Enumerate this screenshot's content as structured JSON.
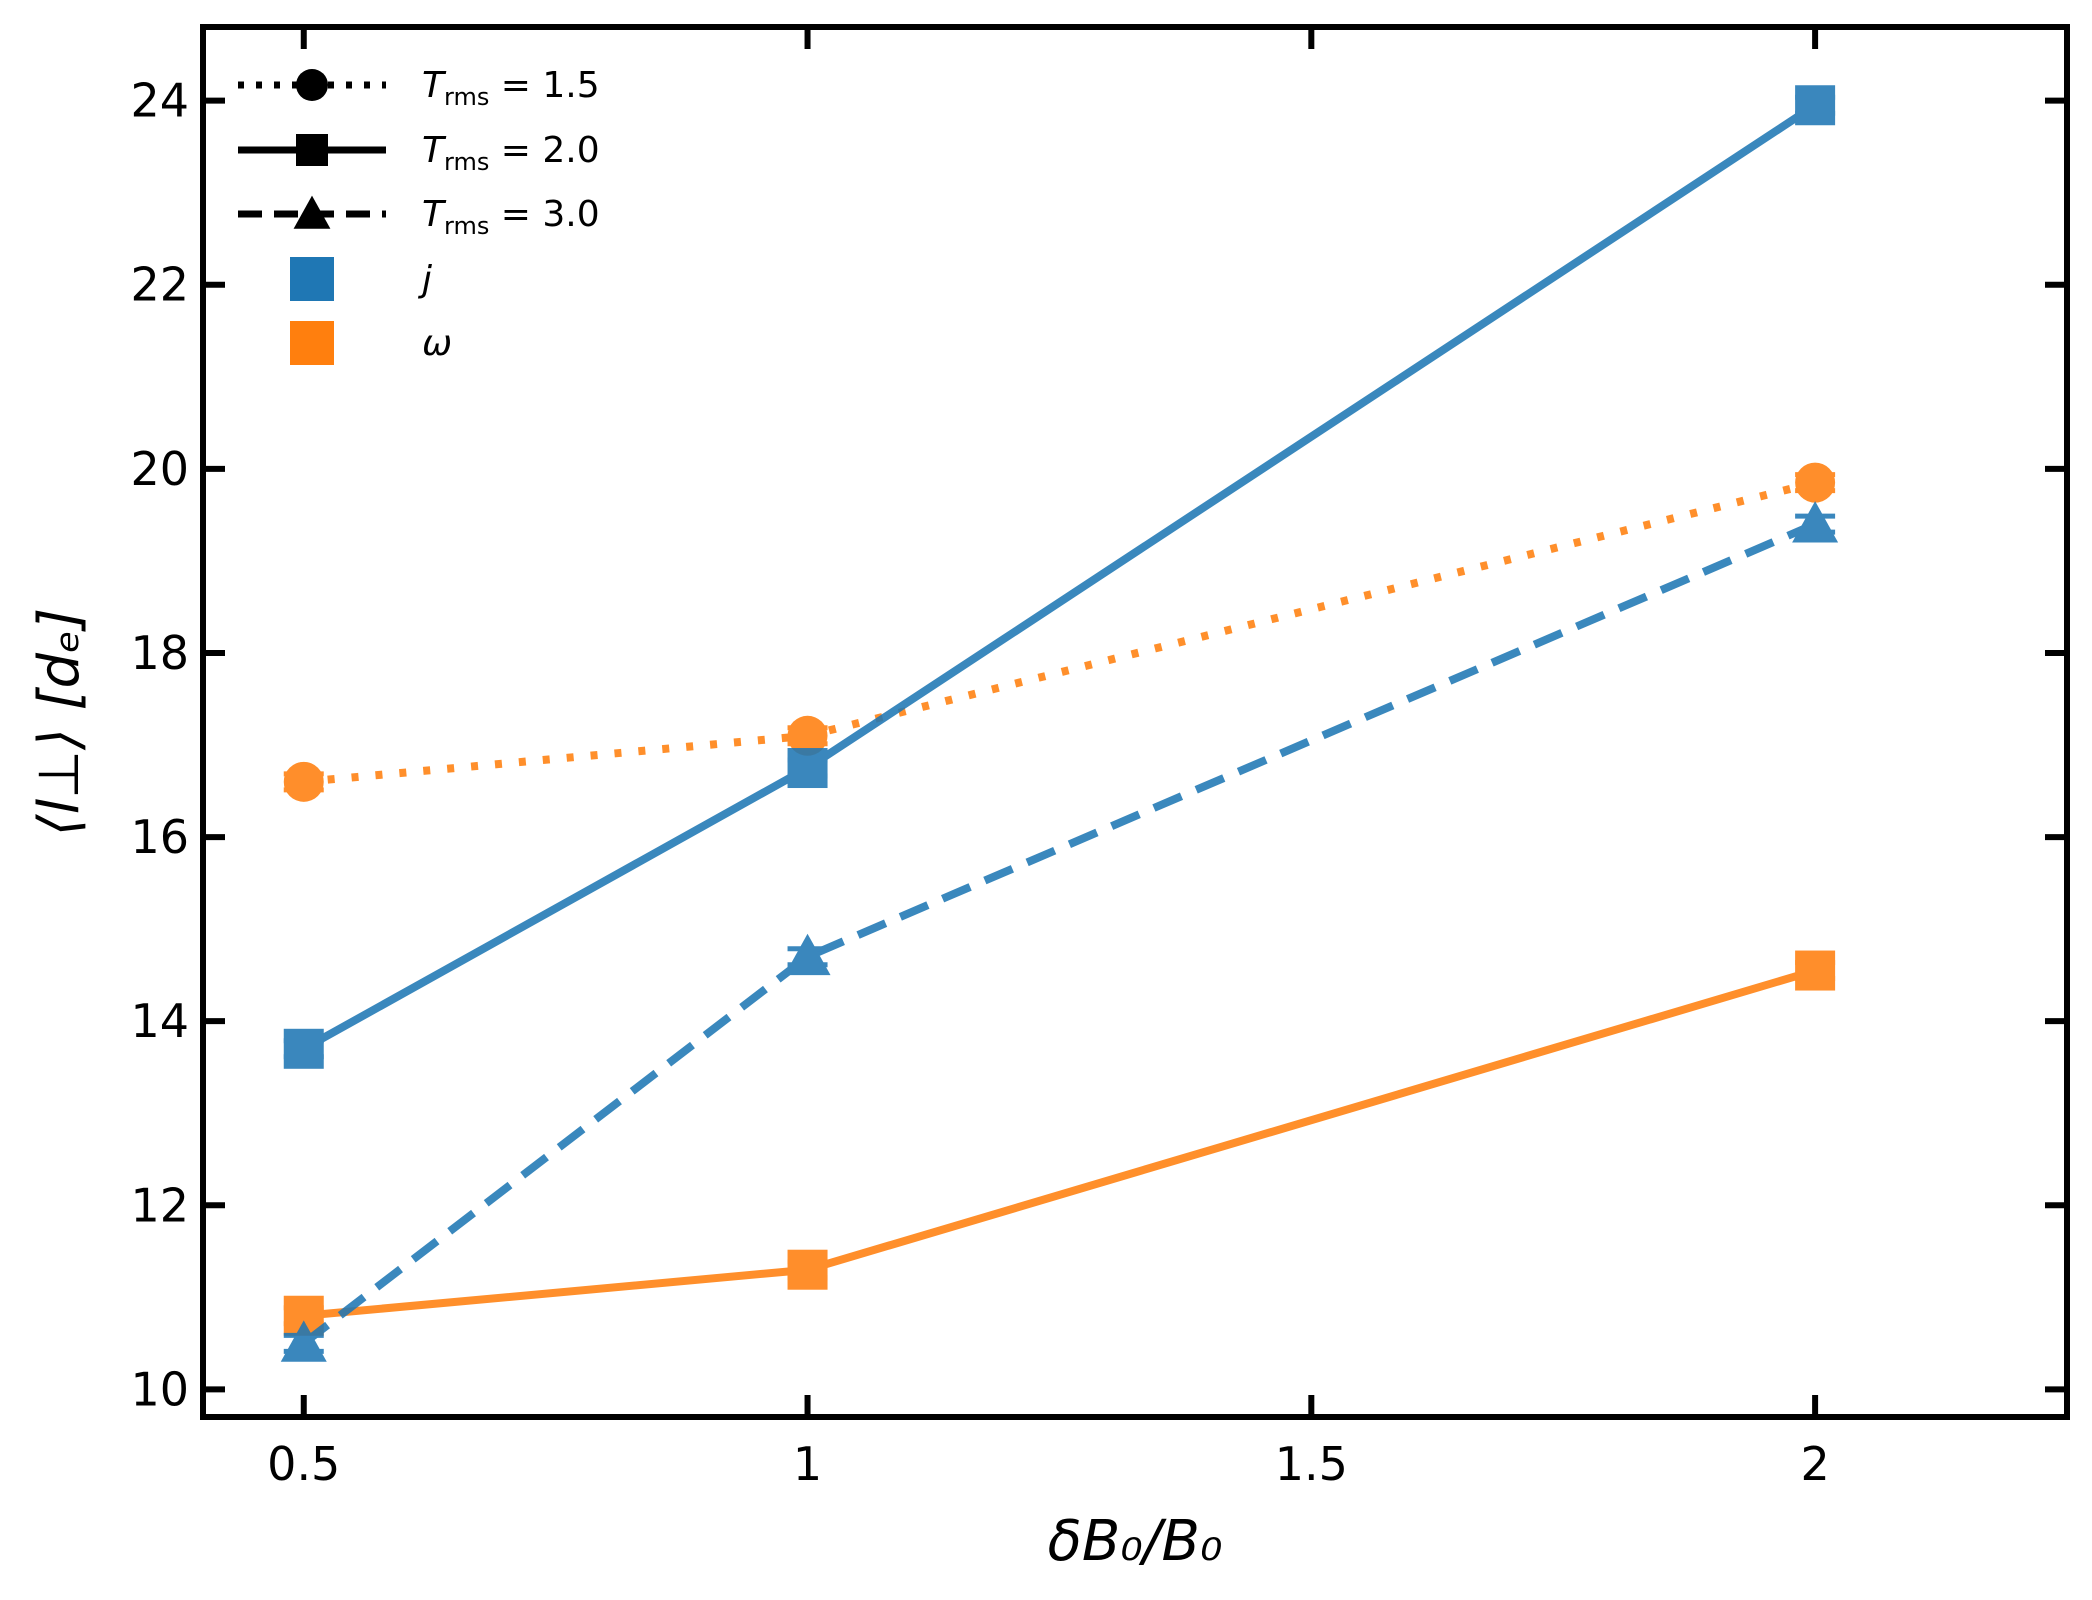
{
  "chart_data": {
    "type": "line",
    "title": "",
    "xlabel": "δB₀/B₀",
    "ylabel": "⟨l⊥⟩ [dₑ]",
    "xlim": [
      0.4,
      2.25
    ],
    "ylim": [
      9.7,
      24.8
    ],
    "x_ticks": [
      0.5,
      1,
      1.5,
      2
    ],
    "x_tick_labels": [
      "0.5",
      "1",
      "1.5",
      "2"
    ],
    "y_ticks": [
      10,
      12,
      14,
      16,
      18,
      20,
      22,
      24
    ],
    "y_tick_labels": [
      "10",
      "12",
      "14",
      "16",
      "18",
      "20",
      "22",
      "24"
    ],
    "grid": false,
    "legend_position": "top-left",
    "legend": {
      "style_entries": [
        {
          "key": "T_rms = 1.5",
          "prefix": "T",
          "sub": "rms",
          "value": " = 1.5",
          "line": "dotted",
          "marker": "circle"
        },
        {
          "key": "T_rms = 2.0",
          "prefix": "T",
          "sub": "rms",
          "value": " = 2.0",
          "line": "solid",
          "marker": "square"
        },
        {
          "key": "T_rms = 3.0",
          "prefix": "T",
          "sub": "rms",
          "value": " = 3.0",
          "line": "dashed",
          "marker": "triangle"
        }
      ],
      "color_entries": [
        {
          "label": "j",
          "color": "#1f77b4"
        },
        {
          "label": "ω",
          "color": "#ff7f0e"
        }
      ]
    },
    "series": [
      {
        "name": "j, T_rms = 2.0",
        "quantity": "j",
        "T_rms": "2.0",
        "color": "#1f77b4",
        "line": "solid",
        "marker": "square",
        "x": [
          0.5,
          1,
          2
        ],
        "y": [
          13.7,
          16.75,
          23.95
        ]
      },
      {
        "name": "j, T_rms = 3.0",
        "quantity": "j",
        "T_rms": "3.0",
        "color": "#1f77b4",
        "line": "dashed",
        "marker": "triangle",
        "x": [
          0.5,
          1,
          2
        ],
        "y": [
          10.5,
          14.7,
          19.4
        ]
      },
      {
        "name": "ω, T_rms = 1.5",
        "quantity": "ω",
        "T_rms": "1.5",
        "color": "#ff7f0e",
        "line": "dotted",
        "marker": "circle",
        "x": [
          0.5,
          1,
          2
        ],
        "y": [
          16.6,
          17.1,
          19.85
        ]
      },
      {
        "name": "ω, T_rms = 2.0",
        "quantity": "ω",
        "T_rms": "2.0",
        "color": "#ff7f0e",
        "line": "solid",
        "marker": "square",
        "x": [
          0.5,
          1,
          2
        ],
        "y": [
          10.8,
          11.3,
          14.55
        ]
      }
    ]
  }
}
